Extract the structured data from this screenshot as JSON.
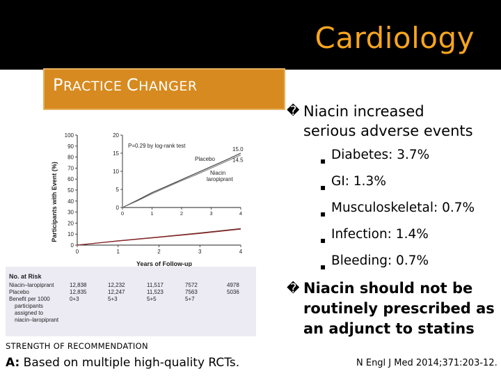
{
  "slide": {
    "title": "Cardiology",
    "banner": {
      "first_cap": "P",
      "first_rest": "RACTICE ",
      "second_cap": "C",
      "second_rest": "HANGER"
    },
    "bullets": [
      {
        "mark": "�",
        "text_line1": "Niacin increased",
        "text_line2": "serious adverse events"
      },
      {
        "mark": "�",
        "text_line1": "Niacin should not be",
        "text_line2": "routinely prescribed as",
        "text_line3": "an adjunct to statins"
      }
    ],
    "sub_bullets": [
      "Diabetes:  3.7%",
      "GI:  1.3%",
      "Musculoskeletal:  0.7%",
      "Infection:  1.4%",
      "Bleeding:  0.7%"
    ],
    "sub_marker": "▪",
    "strength_label": "STRENGTH OF RECOMMENDATION",
    "strength_grade": "A:",
    "strength_text": " Based on multiple high-quality RCTs.",
    "citation": "N Engl J Med 2014;371:203-12."
  },
  "chart_data": {
    "type": "line",
    "ylabel": "Participants with Event (%)",
    "xlabel": "Years of Follow-up",
    "y_ticks": [
      "100",
      "90",
      "80",
      "70",
      "60",
      "50",
      "40",
      "30",
      "20",
      "10",
      "0"
    ],
    "x_ticks": [
      "0",
      "1",
      "2",
      "3",
      "4"
    ],
    "ylim": [
      0,
      100
    ],
    "xlim": [
      0,
      4
    ],
    "inset": {
      "y_ticks": [
        "20",
        "15",
        "10",
        "5",
        "0"
      ],
      "x_ticks": [
        "0",
        "1",
        "2",
        "3",
        "4"
      ],
      "ylim": [
        0,
        20
      ],
      "p_value_label": "P=0.29 by log-rank test",
      "series": [
        {
          "name": "Placebo",
          "end_label": "15.0",
          "x": [
            0,
            0.5,
            1,
            1.5,
            2,
            2.5,
            3,
            3.5,
            4
          ],
          "y": [
            0,
            2.0,
            4.1,
            5.9,
            7.7,
            9.5,
            11.3,
            13.1,
            15.0
          ]
        },
        {
          "name": "Niacin laropiprant",
          "name_line1": "Niacin",
          "name_line2": "laropiprant",
          "end_label": "14.5",
          "x": [
            0,
            0.5,
            1,
            1.5,
            2,
            2.5,
            3,
            3.5,
            4
          ],
          "y": [
            0,
            1.8,
            3.8,
            5.6,
            7.4,
            9.1,
            10.9,
            12.7,
            14.5
          ]
        }
      ]
    },
    "series": [
      {
        "name": "Placebo",
        "x": [
          0,
          1,
          2,
          3,
          4
        ],
        "y": [
          0,
          3.9,
          7.4,
          11.0,
          15.0
        ]
      },
      {
        "name": "Niacin–laropiprant",
        "x": [
          0,
          1,
          2,
          3,
          4
        ],
        "y": [
          0,
          3.7,
          7.1,
          10.6,
          14.5
        ]
      }
    ],
    "risk_table": {
      "header": "No. at Risk",
      "rows": [
        {
          "label": "Niacin–laropiprant",
          "values": [
            "12,838",
            "12,232",
            "11,517",
            "7572",
            "4978"
          ]
        },
        {
          "label": "Placebo",
          "values": [
            "12,835",
            "12,247",
            "11,523",
            "7563",
            "5036"
          ]
        },
        {
          "label": "Benefit per 1000",
          "values": [
            "0+3",
            "5+3",
            "5+5",
            "5+7"
          ]
        }
      ],
      "footnote_lines": [
        "participants",
        "assigned to",
        "niacin–laropiprant"
      ]
    }
  }
}
